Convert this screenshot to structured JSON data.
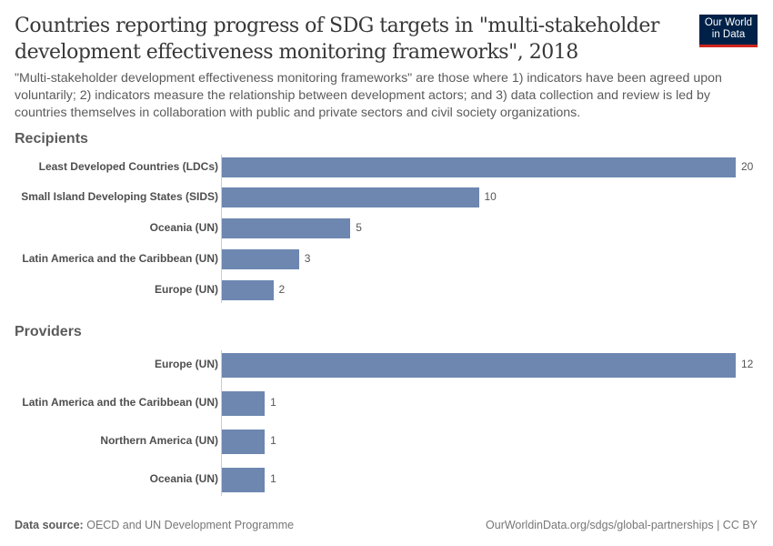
{
  "title": "Countries reporting progress of SDG targets in \"multi-stakeholder development effectiveness monitoring frameworks\", 2018",
  "subtitle": "\"Multi-stakeholder development effectiveness monitoring frameworks\" are those where 1) indicators have been agreed upon voluntarily; 2) indicators measure the relationship between development actors; and 3) data collection and review is led by countries themselves in collaboration with public and private sectors and civil society organizations.",
  "logo": {
    "line1": "Our World",
    "line2": "in Data"
  },
  "footer": {
    "source_label": "Data source:",
    "source": "OECD and UN Development Programme",
    "right": "OurWorldinData.org/sdgs/global-partnerships | CC BY"
  },
  "colors": {
    "bar": "#6d87b0",
    "logo_bg": "#002147",
    "logo_accent": "#ce261e"
  },
  "chart_data": [
    {
      "type": "bar",
      "orientation": "horizontal",
      "facet": "Recipients",
      "categories": [
        "Least Developed Countries (LDCs)",
        "Small Island Developing States (SIDS)",
        "Oceania (UN)",
        "Latin America and the Caribbean (UN)",
        "Europe (UN)"
      ],
      "values": [
        20,
        10,
        5,
        3,
        2
      ],
      "xlim": [
        0,
        20
      ],
      "grid": false
    },
    {
      "type": "bar",
      "orientation": "horizontal",
      "facet": "Providers",
      "categories": [
        "Europe (UN)",
        "Latin America and the Caribbean (UN)",
        "Northern America (UN)",
        "Oceania (UN)"
      ],
      "values": [
        12,
        1,
        1,
        1
      ],
      "xlim": [
        0,
        12
      ],
      "grid": false
    }
  ]
}
